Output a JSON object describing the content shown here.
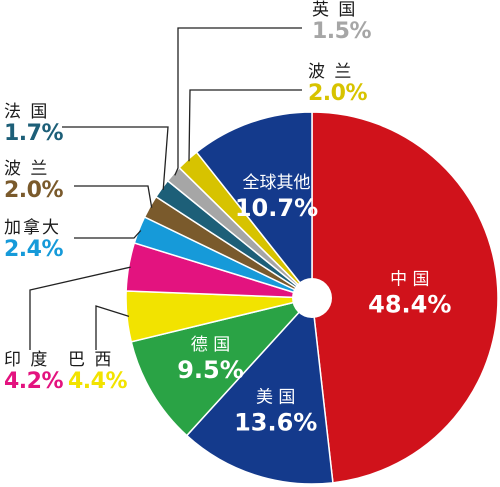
{
  "chart_data": {
    "type": "pie",
    "style": "donut",
    "start_angle_deg": 0,
    "direction": "clockwise",
    "title": "",
    "slices": [
      {
        "name": "中 国",
        "value": 48.4,
        "label": "48.4%",
        "color": "#d0121b",
        "label_pos": "inside"
      },
      {
        "name": "美 国",
        "value": 13.6,
        "label": "13.6%",
        "color": "#143a8c",
        "label_pos": "inside"
      },
      {
        "name": "德 国",
        "value": 9.5,
        "label": "9.5%",
        "color": "#2aa345",
        "label_pos": "inside"
      },
      {
        "name": "巴 西",
        "value": 4.4,
        "label": "4.4%",
        "color": "#f2e300",
        "label_pos": "outside"
      },
      {
        "name": "印 度",
        "value": 4.2,
        "label": "4.2%",
        "color": "#e3137f",
        "label_pos": "outside"
      },
      {
        "name": "加拿大",
        "value": 2.4,
        "label": "2.4%",
        "color": "#169ad9",
        "label_pos": "outside"
      },
      {
        "name": "波 兰",
        "value": 2.0,
        "label": "2.0%",
        "color": "#7a5a2c",
        "label_pos": "outside"
      },
      {
        "name": "法 国",
        "value": 1.7,
        "label": "1.7%",
        "color": "#1d5f78",
        "label_pos": "outside"
      },
      {
        "name": "英 国",
        "value": 1.5,
        "label": "1.5%",
        "color": "#a6a6a6",
        "label_pos": "outside"
      },
      {
        "name": "波 兰",
        "value": 2.0,
        "label": "2.0%",
        "color": "#d7c300",
        "label_pos": "outside"
      },
      {
        "name": "全球其他",
        "value": 10.7,
        "label": "10.7%",
        "color": "#143a8c",
        "label_pos": "inside"
      }
    ],
    "legend": "none"
  }
}
